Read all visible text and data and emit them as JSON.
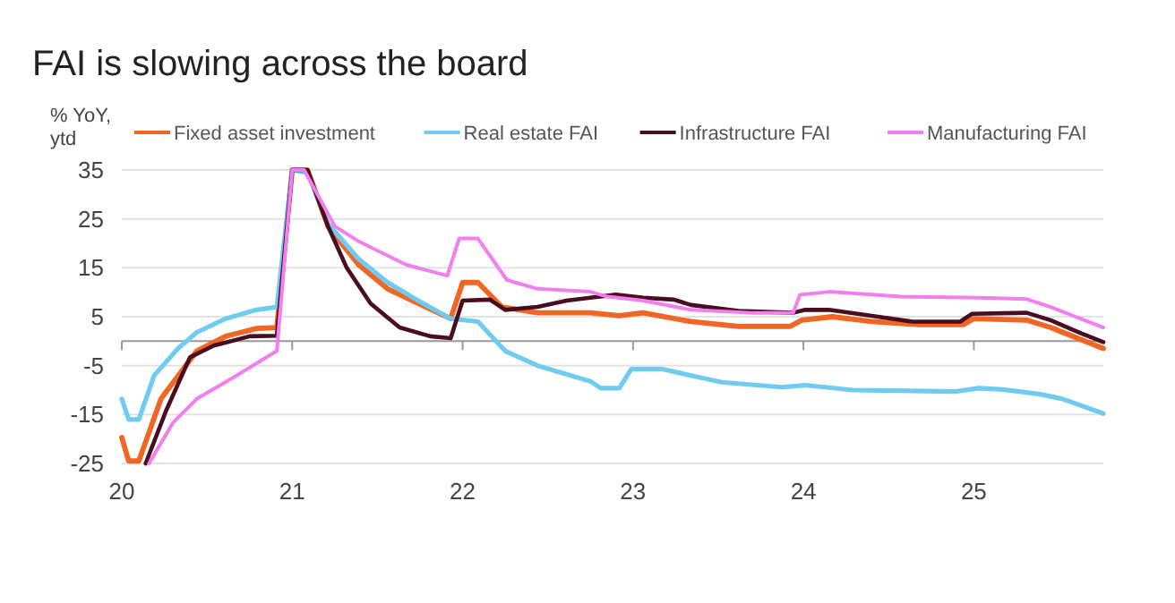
{
  "chart_data": {
    "type": "line",
    "title": "FAI is slowing across the board",
    "ylabel": "% YoY, ytd",
    "xlim": [
      2020,
      2025.76
    ],
    "xticks": [
      {
        "value": 2020,
        "label": "20"
      },
      {
        "value": 2021,
        "label": "21"
      },
      {
        "value": 2022,
        "label": "22"
      },
      {
        "value": 2023,
        "label": "23"
      },
      {
        "value": 2024,
        "label": "24"
      },
      {
        "value": 2025,
        "label": "25"
      }
    ],
    "ylim": [
      -25,
      35
    ],
    "yticks": [
      35,
      25,
      15,
      5,
      -5,
      -15,
      -25
    ],
    "grid": "y",
    "legend": "top",
    "line_style": "solid",
    "marker": "none",
    "series": [
      {
        "name": "Fixed asset investment",
        "color": "#f26522",
        "x": [
          2020,
          2020.04,
          2020.1,
          2020.23,
          2020.44,
          2020.61,
          2020.79,
          2020.91,
          2021,
          2021.09,
          2021.21,
          2021.39,
          2021.56,
          2021.74,
          2021.93,
          2022,
          2022.09,
          2022.23,
          2022.44,
          2022.75,
          2022.92,
          2023.06,
          2023.34,
          2023.62,
          2023.92,
          2023.99,
          2024.17,
          2024.4,
          2024.68,
          2024.94,
          2025,
          2025.31,
          2025.45,
          2025.76
        ],
        "values": [
          -19.7,
          -24.5,
          -24.5,
          -11.8,
          -2,
          1,
          2.6,
          2.8,
          35,
          35,
          23.5,
          15.6,
          10.7,
          7.7,
          4.6,
          12,
          12,
          7,
          5.8,
          5.8,
          5.2,
          5.8,
          4,
          3,
          3,
          4.3,
          5,
          4,
          3.4,
          3.4,
          4.6,
          4.3,
          2.8,
          -1.5
        ]
      },
      {
        "name": "Real estate FAI",
        "color": "#6fcbef",
        "x": [
          2020,
          2020.04,
          2020.1,
          2020.19,
          2020.33,
          2020.44,
          2020.61,
          2020.79,
          2020.91,
          2021,
          2021.09,
          2021.21,
          2021.39,
          2021.56,
          2021.74,
          2021.93,
          2022.09,
          2022.25,
          2022.44,
          2022.75,
          2022.81,
          2022.92,
          2022.99,
          2023.17,
          2023.52,
          2023.87,
          2024.01,
          2024.29,
          2024.89,
          2025.03,
          2025.17,
          2025.38,
          2025.52,
          2025.76
        ],
        "values": [
          -11.8,
          -16,
          -16,
          -7,
          -1.5,
          1.8,
          4.6,
          6.4,
          7,
          35,
          34.4,
          24,
          16.8,
          12,
          8.3,
          4.6,
          4,
          -2,
          -5,
          -8.2,
          -9.6,
          -9.6,
          -5.7,
          -5.7,
          -8.4,
          -9.4,
          -9,
          -10,
          -10.3,
          -9.6,
          -9.9,
          -10.8,
          -11.8,
          -14.8
        ]
      },
      {
        "name": "Infrastructure FAI",
        "color": "#4a0d20",
        "x": [
          2020.14,
          2020.26,
          2020.4,
          2020.54,
          2020.75,
          2020.91,
          2021,
          2021.09,
          2021.21,
          2021.32,
          2021.46,
          2021.63,
          2021.81,
          2021.93,
          2022,
          2022.16,
          2022.25,
          2022.44,
          2022.61,
          2022.75,
          2022.9,
          2023.06,
          2023.24,
          2023.34,
          2023.62,
          2023.94,
          2024.01,
          2024.15,
          2024.4,
          2024.64,
          2024.92,
          2024.99,
          2025.31,
          2025.45,
          2025.63,
          2025.76
        ],
        "values": [
          -25,
          -14.2,
          -3.3,
          -0.9,
          1,
          1.1,
          35,
          35,
          23.5,
          15,
          7.7,
          2.8,
          1,
          0.6,
          8.3,
          8.5,
          6.4,
          7,
          8.3,
          8.9,
          9.5,
          8.9,
          8.5,
          7.4,
          6.2,
          5.8,
          6.4,
          6.4,
          5.2,
          4,
          4,
          5.6,
          5.8,
          4.3,
          1.6,
          -0.2
        ]
      },
      {
        "name": "Manufacturing FAI",
        "color": "#f27ef0",
        "x": [
          2020.16,
          2020.3,
          2020.44,
          2020.68,
          2020.91,
          2021,
          2021.07,
          2021.25,
          2021.39,
          2021.67,
          2021.91,
          2021.98,
          2022.09,
          2022.26,
          2022.44,
          2022.75,
          2022.85,
          2023.06,
          2023.34,
          2023.69,
          2023.94,
          2023.98,
          2024.15,
          2024.57,
          2025.03,
          2025.31,
          2025.45,
          2025.76
        ],
        "values": [
          -25,
          -16.7,
          -11.8,
          -6.9,
          -2,
          35,
          35,
          23.5,
          20.4,
          15.6,
          13.4,
          21,
          21,
          12.5,
          10.7,
          10.1,
          9.1,
          8.3,
          6.4,
          5.8,
          5.8,
          9.5,
          10.1,
          9.1,
          8.9,
          8.6,
          7,
          2.8
        ]
      }
    ]
  }
}
